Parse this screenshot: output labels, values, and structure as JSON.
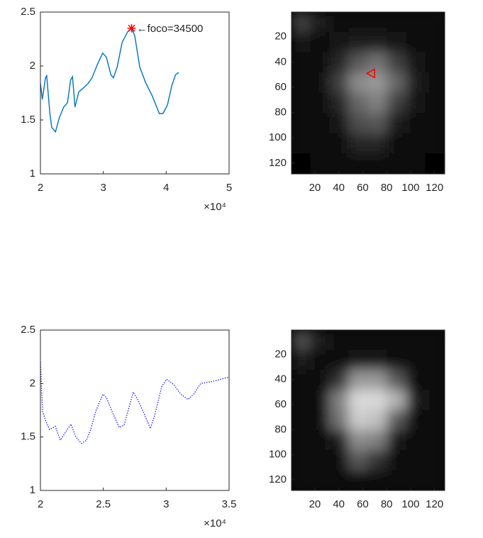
{
  "chart_data": [
    {
      "type": "line",
      "x": [
        20000,
        20300,
        20800,
        21000,
        21500,
        21800,
        22400,
        23000,
        23700,
        24300,
        24800,
        25100,
        25500,
        26100,
        26900,
        27600,
        28200,
        29100,
        29900,
        30500,
        31200,
        31600,
        32200,
        33000,
        33900,
        34500,
        35000,
        35800,
        36700,
        37800,
        38900,
        39500,
        40200,
        40900,
        41500,
        42000
      ],
      "series": [
        {
          "color": "#0072bd",
          "style": "solid",
          "values": [
            1.84,
            1.69,
            1.89,
            1.91,
            1.56,
            1.43,
            1.39,
            1.52,
            1.62,
            1.66,
            1.87,
            1.9,
            1.62,
            1.76,
            1.8,
            1.84,
            1.89,
            2.02,
            2.12,
            2.08,
            1.92,
            1.89,
            1.99,
            2.22,
            2.32,
            2.35,
            2.28,
            1.99,
            1.85,
            1.72,
            1.56,
            1.56,
            1.64,
            1.82,
            1.92,
            1.94
          ]
        }
      ],
      "xlim": [
        20000,
        50000
      ],
      "xticks": [
        {
          "value": 20000,
          "label": "2"
        },
        {
          "value": 30000,
          "label": "3"
        },
        {
          "value": 40000,
          "label": "4"
        },
        {
          "value": 50000,
          "label": "5"
        }
      ],
      "x_exponent_label": "×10⁴",
      "ylim": [
        1,
        2.5
      ],
      "yticks": [
        1,
        1.5,
        2,
        2.5
      ],
      "annotation": {
        "text": "←foco=34500",
        "x": 34500,
        "y": 2.35,
        "color": "#ff0000"
      }
    },
    {
      "type": "line",
      "x": [
        20000,
        20170,
        20450,
        20730,
        21180,
        21580,
        21970,
        22420,
        22820,
        23270,
        23660,
        24000,
        24400,
        24960,
        25240,
        25690,
        26260,
        26650,
        27100,
        27380,
        27780,
        28230,
        28740,
        29080,
        29640,
        30030,
        30600,
        31160,
        31730,
        32180,
        32740,
        33700,
        35000
      ],
      "series": [
        {
          "color": "#0000ff",
          "style": "dotted",
          "values": [
            2.2,
            1.74,
            1.64,
            1.57,
            1.6,
            1.47,
            1.54,
            1.62,
            1.5,
            1.44,
            1.47,
            1.57,
            1.74,
            1.9,
            1.87,
            1.74,
            1.59,
            1.61,
            1.8,
            1.92,
            1.84,
            1.72,
            1.58,
            1.7,
            1.97,
            2.04,
            1.99,
            1.9,
            1.85,
            1.9,
            2.0,
            2.02,
            2.06
          ]
        }
      ],
      "xlim": [
        20000,
        35000
      ],
      "xticks": [
        {
          "value": 20000,
          "label": "2"
        },
        {
          "value": 25000,
          "label": "2.5"
        },
        {
          "value": 30000,
          "label": "3"
        },
        {
          "value": 35000,
          "label": "3.5"
        }
      ],
      "x_exponent_label": "×10⁴",
      "ylim": [
        1,
        2.5
      ],
      "yticks": [
        1,
        1.5,
        2,
        2.5
      ]
    },
    {
      "type": "image",
      "xlim": [
        0.5,
        128.5
      ],
      "ylim": [
        0.5,
        128.5
      ],
      "xticks": [
        20,
        40,
        60,
        80,
        100,
        120
      ],
      "yticks": [
        20,
        40,
        60,
        80,
        100,
        120
      ],
      "values": [
        [
          0.25,
          0.1,
          0.05,
          0.05,
          0.05,
          0.05,
          0.05,
          0.03
        ],
        [
          0.08,
          0.05,
          0.08,
          0.12,
          0.12,
          0.08,
          0.05,
          0.03
        ],
        [
          0.05,
          0.05,
          0.15,
          0.35,
          0.45,
          0.25,
          0.08,
          0.04
        ],
        [
          0.04,
          0.06,
          0.25,
          0.55,
          0.6,
          0.4,
          0.1,
          0.04
        ],
        [
          0.03,
          0.05,
          0.15,
          0.4,
          0.5,
          0.25,
          0.08,
          0.03
        ],
        [
          0.03,
          0.04,
          0.08,
          0.3,
          0.35,
          0.12,
          0.05,
          0.03
        ],
        [
          0.03,
          0.03,
          0.05,
          0.15,
          0.15,
          0.06,
          0.04,
          0.03
        ],
        [
          0.02,
          0.03,
          0.04,
          0.06,
          0.06,
          0.04,
          0.03,
          0.02
        ]
      ],
      "marker": {
        "x": 67,
        "y": 49,
        "color": "#ff0000"
      }
    },
    {
      "type": "image",
      "xlim": [
        0.5,
        128.5
      ],
      "ylim": [
        0.5,
        128.5
      ],
      "xticks": [
        20,
        40,
        60,
        80,
        100,
        120
      ],
      "yticks": [
        20,
        40,
        60,
        80,
        100,
        120
      ],
      "values": [
        [
          0.3,
          0.12,
          0.06,
          0.05,
          0.05,
          0.05,
          0.05,
          0.04
        ],
        [
          0.1,
          0.06,
          0.06,
          0.08,
          0.08,
          0.06,
          0.05,
          0.04
        ],
        [
          0.05,
          0.05,
          0.2,
          0.6,
          0.6,
          0.35,
          0.05,
          0.04
        ],
        [
          0.05,
          0.06,
          0.5,
          0.85,
          0.85,
          0.7,
          0.1,
          0.04
        ],
        [
          0.05,
          0.06,
          0.45,
          0.8,
          0.75,
          0.35,
          0.06,
          0.04
        ],
        [
          0.04,
          0.05,
          0.1,
          0.55,
          0.5,
          0.08,
          0.05,
          0.04
        ],
        [
          0.04,
          0.04,
          0.05,
          0.35,
          0.2,
          0.05,
          0.04,
          0.04
        ],
        [
          0.04,
          0.04,
          0.04,
          0.05,
          0.05,
          0.04,
          0.04,
          0.04
        ]
      ]
    }
  ]
}
